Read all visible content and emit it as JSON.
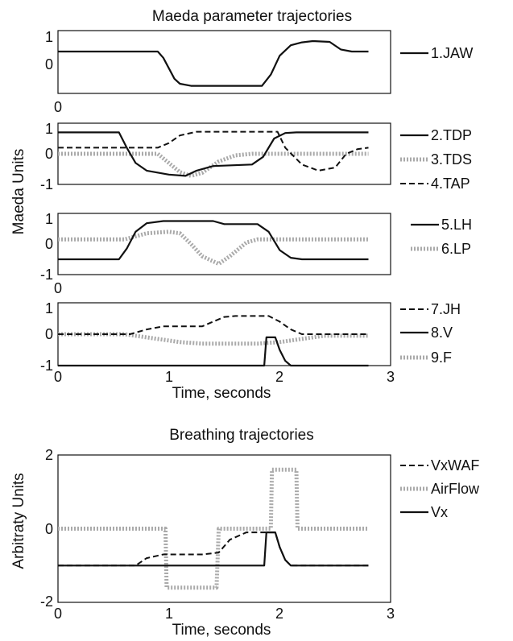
{
  "chart_data": [
    {
      "type": "line",
      "title": "Maeda parameter trajectories",
      "ylabel": "Maeda Units",
      "panels": [
        {
          "id": "p1",
          "ylim": [
            -0.5,
            1
          ],
          "yticks": [
            "1",
            "0",
            "0"
          ],
          "series": [
            {
              "name": "1.JAW",
              "style": "solid",
              "x": [
                0,
                0.9,
                0.95,
                1.0,
                1.05,
                1.1,
                1.2,
                1.84,
                1.92,
                2.0,
                2.1,
                2.2,
                2.3,
                2.45,
                2.55,
                2.65,
                2.8
              ],
              "y": [
                0.5,
                0.5,
                0.35,
                0.1,
                -0.15,
                -0.27,
                -0.32,
                -0.32,
                -0.05,
                0.4,
                0.65,
                0.72,
                0.75,
                0.73,
                0.55,
                0.5,
                0.5
              ]
            }
          ]
        },
        {
          "id": "p2",
          "ylim": [
            -1,
            1
          ],
          "yticks": [
            "1",
            "0",
            "-1"
          ],
          "series": [
            {
              "name": "2.TDP",
              "style": "solid",
              "x": [
                0,
                0.55,
                0.62,
                0.7,
                0.8,
                1.0,
                1.15,
                1.25,
                1.4,
                1.75,
                1.85,
                1.95,
                2.05,
                2.15,
                2.8
              ],
              "y": [
                0.7,
                0.7,
                0.2,
                -0.3,
                -0.55,
                -0.68,
                -0.72,
                -0.55,
                -0.4,
                -0.35,
                -0.1,
                0.5,
                0.68,
                0.7,
                0.7
              ]
            },
            {
              "name": "3.TDS",
              "style": "dotted",
              "x": [
                0,
                0.9,
                1.0,
                1.1,
                1.2,
                1.3,
                1.45,
                1.6,
                1.75,
                2.0,
                2.8
              ],
              "y": [
                0.0,
                0.0,
                -0.3,
                -0.6,
                -0.72,
                -0.62,
                -0.25,
                -0.05,
                0.0,
                0.0,
                0.0
              ]
            },
            {
              "name": "4.TAP",
              "style": "dashed",
              "x": [
                0,
                0.9,
                1.0,
                1.1,
                1.25,
                1.5,
                1.98,
                2.05,
                2.2,
                2.35,
                2.5,
                2.6,
                2.7,
                2.8
              ],
              "y": [
                0.2,
                0.2,
                0.35,
                0.6,
                0.72,
                0.72,
                0.72,
                0.2,
                -0.35,
                -0.55,
                -0.45,
                0.0,
                0.15,
                0.2
              ]
            }
          ]
        },
        {
          "id": "p3",
          "ylim": [
            -1,
            1
          ],
          "yticks": [
            "1",
            "0",
            "-1"
          ],
          "series": [
            {
              "name": "5.LH",
              "style": "solid",
              "x": [
                0,
                0.55,
                0.62,
                0.7,
                0.8,
                0.95,
                1.4,
                1.5,
                1.8,
                1.9,
                2.0,
                2.1,
                2.2,
                2.8
              ],
              "y": [
                -0.5,
                -0.5,
                -0.15,
                0.4,
                0.68,
                0.75,
                0.75,
                0.65,
                0.65,
                0.4,
                -0.2,
                -0.45,
                -0.5,
                -0.5
              ]
            },
            {
              "name": "6.LP",
              "style": "dotted",
              "x": [
                0,
                0.6,
                0.8,
                1.0,
                1.1,
                1.2,
                1.3,
                1.45,
                1.55,
                1.7,
                1.8,
                2.8
              ],
              "y": [
                0.15,
                0.15,
                0.35,
                0.4,
                0.35,
                0.0,
                -0.4,
                -0.65,
                -0.4,
                0.05,
                0.15,
                0.15
              ]
            }
          ]
        },
        {
          "id": "p4",
          "ylim": [
            -1,
            1
          ],
          "yticks": [
            "1",
            "0",
            "-1"
          ],
          "xticks": [
            "0",
            "1",
            "2",
            "3"
          ],
          "xlim": [
            0,
            3
          ],
          "xlabel": "Time, seconds",
          "series": [
            {
              "name": "7.JH",
              "style": "dashed",
              "x": [
                0,
                0.65,
                0.8,
                0.95,
                1.3,
                1.4,
                1.5,
                1.6,
                1.9,
                2.0,
                2.1,
                2.2,
                2.8
              ],
              "y": [
                0.0,
                0.0,
                0.15,
                0.25,
                0.25,
                0.4,
                0.55,
                0.58,
                0.58,
                0.4,
                0.15,
                0.0,
                0.0
              ]
            },
            {
              "name": "8.V",
              "style": "solid",
              "x": [
                0,
                1.86,
                1.88,
                1.96,
                2.0,
                2.05,
                2.1,
                2.2,
                2.8
              ],
              "y": [
                -1,
                -1,
                -0.1,
                -0.1,
                -0.5,
                -0.85,
                -1,
                -1,
                -1
              ]
            },
            {
              "name": "9.F",
              "style": "dotted",
              "x": [
                0,
                0.6,
                0.9,
                1.1,
                1.3,
                1.5,
                1.8,
                2.0,
                2.2,
                2.4,
                2.8
              ],
              "y": [
                0.0,
                0.0,
                -0.15,
                -0.25,
                -0.3,
                -0.3,
                -0.3,
                -0.25,
                -0.15,
                -0.05,
                -0.05
              ]
            }
          ]
        }
      ]
    },
    {
      "type": "line",
      "title": "Breathing trajectories",
      "ylabel": "Arbitraty Units",
      "xlabel": "Time, seconds",
      "xlim": [
        0,
        3
      ],
      "ylim": [
        -2,
        2
      ],
      "xticks": [
        "0",
        "1",
        "2",
        "3"
      ],
      "yticks": [
        "2",
        "0",
        "-2"
      ],
      "series": [
        {
          "name": "VxWAF",
          "style": "dashed",
          "x": [
            0,
            0.7,
            0.8,
            0.95,
            1.3,
            1.45,
            1.55,
            1.7,
            1.86,
            1.88,
            1.96,
            2.0,
            2.05,
            2.1,
            2.2,
            2.8
          ],
          "y": [
            -1,
            -1,
            -0.8,
            -0.7,
            -0.7,
            -0.65,
            -0.3,
            -0.1,
            -0.1,
            -0.1,
            -0.1,
            -0.5,
            -0.85,
            -1,
            -1,
            -1
          ]
        },
        {
          "name": "AirFlow",
          "style": "dotted",
          "x": [
            0,
            0.97,
            0.98,
            1.43,
            1.45,
            1.92,
            1.93,
            2.15,
            2.16,
            2.8
          ],
          "y": [
            0,
            0,
            -1.6,
            -1.6,
            0,
            0,
            1.6,
            1.6,
            0,
            0
          ]
        },
        {
          "name": "Vx",
          "style": "solid",
          "x": [
            0,
            1.86,
            1.88,
            1.96,
            2.0,
            2.05,
            2.1,
            2.2,
            2.8
          ],
          "y": [
            -1,
            -1,
            -0.1,
            -0.1,
            -0.5,
            -0.85,
            -1,
            -1,
            -1
          ]
        }
      ]
    }
  ]
}
